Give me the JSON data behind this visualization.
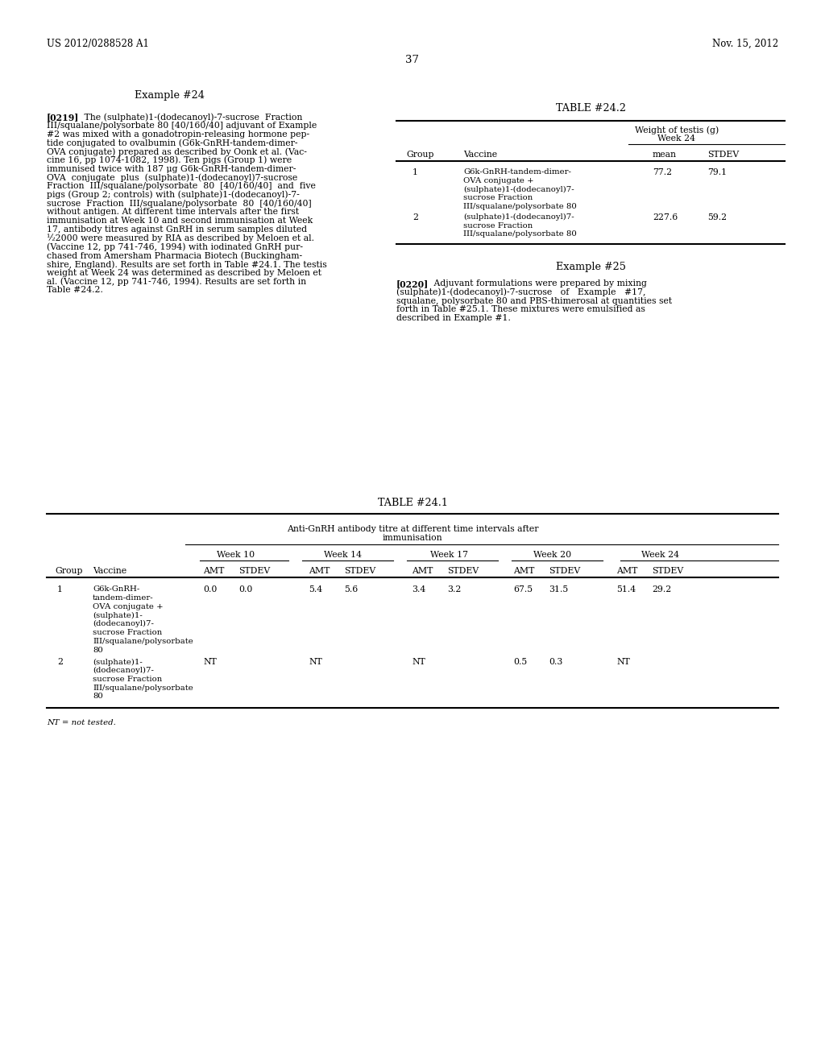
{
  "background_color": "#ffffff",
  "header_left": "US 2012/0288528 A1",
  "header_right": "Nov. 15, 2012",
  "page_number": "37",
  "example24_title": "Example #24",
  "example24_para_lines": [
    "[0219]   The (sulphate)1-(dodecanoyl)-7-sucrose  Fraction",
    "III/squalane/polysorbate 80 [40/160/40] adjuvant of Example",
    "#2 was mixed with a gonadotropin-releasing hormone pep-",
    "tide conjugated to ovalbumin (G6k-GnRH-tandem-dimer-",
    "OVA conjugate) prepared as described by Oonk et al. (Vac-",
    "cine 16, pp 1074-1082, 1998). Ten pigs (Group 1) were",
    "immunised twice with 187 μg G6k-GnRH-tandem-dimer-",
    "OVA  conjugate  plus  (sulphate)1-(dodecanoyl)7-sucrose",
    "Fraction  III/squalane/polysorbate  80  [40/160/40]  and  five",
    "pigs (Group 2; controls) with (sulphate)1-(dodecanoyl)-7-",
    "sucrose  Fraction  III/squalane/polysorbate  80  [40/160/40]",
    "without antigen. At different time intervals after the first",
    "immunisation at Week 10 and second immunisation at Week",
    "17, antibody titres against GnRH in serum samples diluted",
    "½2000 were measured by RIA as described by Meloen et al.",
    "(Vaccine 12, pp 741-746, 1994) with iodinated GnRH pur-",
    "chased from Amersham Pharmacia Biotech (Buckingham-",
    "shire, England). Results are set forth in Table #24.1. The testis",
    "weight at Week 24 was determined as described by Meloen et",
    "al. (Vaccine 12, pp 741-746, 1994). Results are set forth in",
    "Table #24.2."
  ],
  "table242_title": "TABLE #24.2",
  "table242_col_header1": "Weight of testis (g)",
  "table242_col_header2": "Week 24",
  "table242_headers": [
    "Group",
    "Vaccine",
    "mean",
    "STDEV"
  ],
  "table242_vac1_lines": [
    "G6k-GnRH-tandem-dimer-",
    "OVA conjugate +",
    "(sulphate)1-(dodecanoyl)7-",
    "sucrose Fraction",
    "III/squalane/polysorbate 80"
  ],
  "table242_vac2_lines": [
    "(sulphate)1-(dodecanoyl)7-",
    "sucrose Fraction",
    "III/squalane/polysorbate 80"
  ],
  "table242_row1_vals": [
    "1",
    "77.2",
    "79.1"
  ],
  "table242_row2_vals": [
    "2",
    "227.6",
    "59.2"
  ],
  "example25_title": "Example #25",
  "example25_para_lines": [
    "[0220]   Adjuvant formulations were prepared by mixing",
    "(sulphate)1-(dodecanoyl)-7-sucrose   of   Example   #17,",
    "squalane, polysorbate 80 and PBS-thimerosal at quantities set",
    "forth in Table #25.1. These mixtures were emulsified as",
    "described in Example #1."
  ],
  "table241_title": "TABLE #24.1",
  "table241_span_header1": "Anti-GnRH antibody titre at different time intervals after",
  "table241_span_header2": "immunisation",
  "table241_week_headers": [
    "Week 10",
    "Week 14",
    "Week 17",
    "Week 20",
    "Week 24"
  ],
  "table241_row1_vaccine": [
    "G6k-GnRH-",
    "tandem-dimer-",
    "OVA conjugate +",
    "(sulphate)1-",
    "(dodecanoyl)7-",
    "sucrose Fraction",
    "III/squalane/polysorbate",
    "80"
  ],
  "table241_row2_vaccine": [
    "(sulphate)1-",
    "(dodecanoyl)7-",
    "sucrose Fraction",
    "III/squalane/polysorbate",
    "80"
  ],
  "table241_row1_vals": [
    "0.0",
    "0.0",
    "5.4",
    "5.6",
    "3.4",
    "3.2",
    "67.5",
    "31.5",
    "51.4",
    "29.2"
  ],
  "table241_row2_data": [
    [
      "NT",
      ""
    ],
    [
      "NT",
      ""
    ],
    [
      "NT",
      ""
    ],
    [
      "0.5",
      "0.3"
    ],
    [
      "NT",
      ""
    ]
  ],
  "footnote": "NT = not tested.",
  "fs": 7.8,
  "fs_hdr": 8.5,
  "fs_title": 9.2
}
